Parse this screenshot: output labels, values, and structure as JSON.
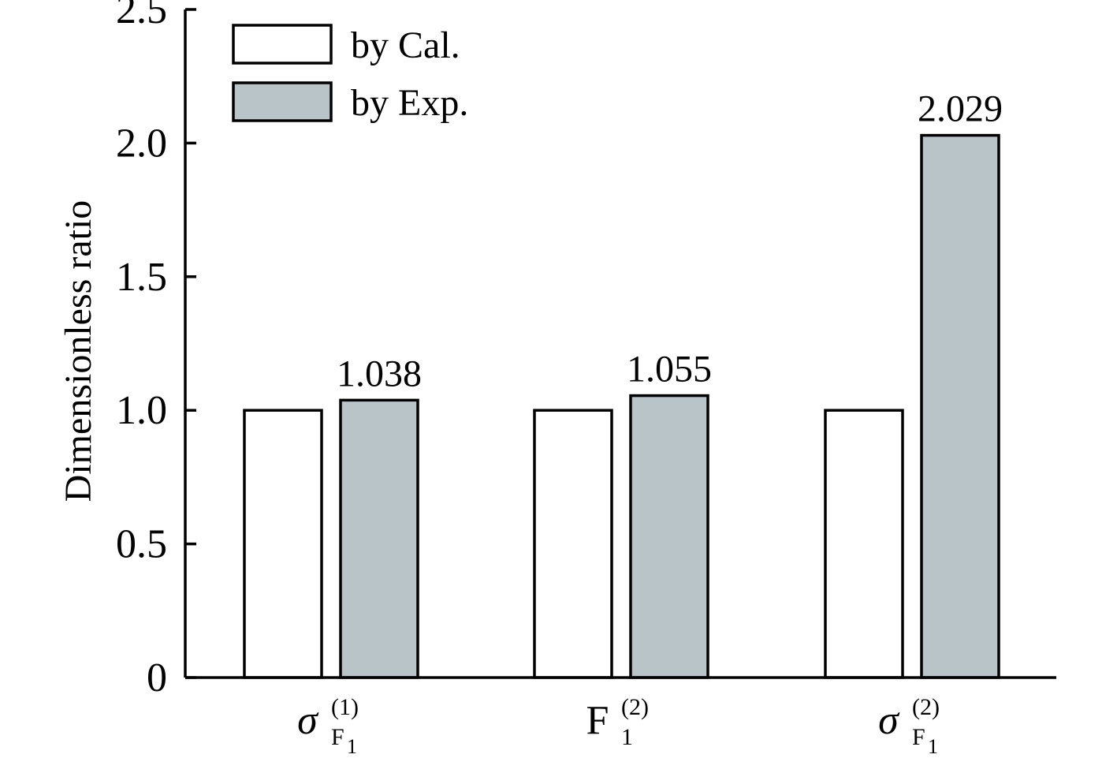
{
  "chart_data": {
    "type": "bar",
    "ylabel": "Dimensionless ratio",
    "ylim": [
      0,
      2.5
    ],
    "yticks": [
      {
        "value": 0,
        "label": "0"
      },
      {
        "value": 0.5,
        "label": "0.5"
      },
      {
        "value": 1.0,
        "label": "1.0"
      },
      {
        "value": 1.5,
        "label": "1.5"
      },
      {
        "value": 2.0,
        "label": "2.0"
      },
      {
        "value": 2.5,
        "label": "2.5"
      }
    ],
    "categories": [
      {
        "base": "σ",
        "base_italic": true,
        "sup": "(1)",
        "sub": "F",
        "subsub": "1"
      },
      {
        "base": "F",
        "base_italic": false,
        "sup": "(2)",
        "sub": "1",
        "subsub": ""
      },
      {
        "base": "σ",
        "base_italic": true,
        "sup": "(2)",
        "sub": "F",
        "subsub": "1"
      }
    ],
    "series": [
      {
        "name": "by Cal.",
        "color": "#ffffff",
        "values": [
          1.0,
          1.0,
          1.0
        ],
        "data_labels": [
          "",
          "",
          ""
        ]
      },
      {
        "name": "by Exp.",
        "color": "#b8c4c8",
        "values": [
          1.038,
          1.055,
          2.029
        ],
        "data_labels": [
          "1.038",
          "1.055",
          "2.029"
        ]
      }
    ],
    "legend_position": "top-left",
    "grid": false
  }
}
